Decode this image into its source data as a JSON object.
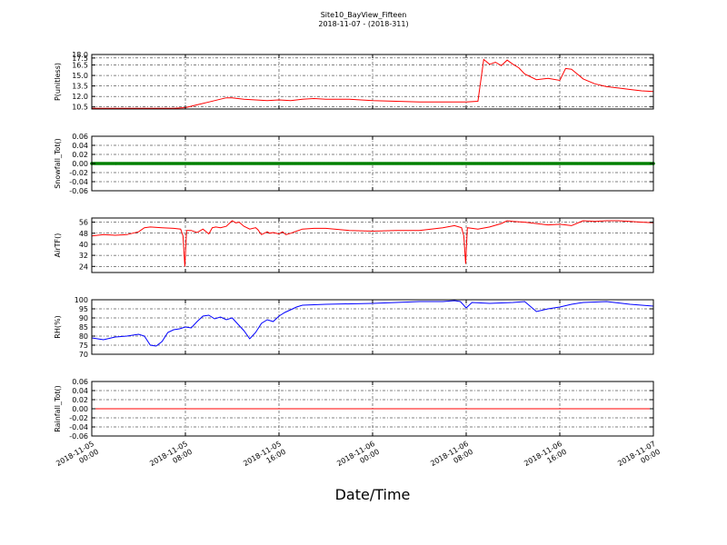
{
  "figure": {
    "title": "Site10_BayView_Fifteen",
    "subtitle": "2018-11-07 - (2018-311)",
    "xlabel": "Date/Time"
  },
  "chart_data": [
    {
      "type": "line",
      "ylabel": "P(unitless)",
      "color": "#ff0000",
      "ylim": [
        10.2,
        18.0
      ],
      "yticks": [
        "18.0",
        "17.5",
        "16.5",
        "15.0",
        "13.5",
        "12.0",
        "10.5"
      ],
      "ytick_values": [
        18.0,
        17.5,
        16.5,
        15.0,
        13.5,
        12.0,
        10.5
      ],
      "xlim": [
        0,
        48
      ],
      "x": [
        0,
        2,
        4,
        6,
        7,
        8,
        9,
        10,
        11,
        11.5,
        12,
        13,
        14,
        15,
        16,
        17,
        18,
        19,
        20,
        22,
        24,
        26,
        28,
        30,
        32,
        33,
        33.5,
        34,
        34.5,
        35,
        35.5,
        36,
        36.5,
        37,
        38,
        39,
        40,
        40.5,
        41,
        42,
        43,
        44,
        45,
        46,
        47,
        48
      ],
      "y": [
        10.3,
        10.3,
        10.3,
        10.3,
        10.3,
        10.4,
        10.8,
        11.2,
        11.6,
        11.8,
        11.8,
        11.6,
        11.5,
        11.4,
        11.5,
        11.4,
        11.6,
        11.7,
        11.6,
        11.6,
        11.4,
        11.3,
        11.2,
        11.2,
        11.2,
        11.3,
        17.3,
        16.6,
        16.9,
        16.4,
        17.2,
        16.6,
        16.1,
        15.2,
        14.4,
        14.6,
        14.3,
        16.0,
        15.9,
        14.5,
        13.8,
        13.4,
        13.2,
        13.0,
        12.8,
        12.7
      ]
    },
    {
      "type": "scatter",
      "ylabel": "Snowfall_Tot()",
      "color": "#008000",
      "ylim": [
        -0.06,
        0.06
      ],
      "yticks": [
        "0.06",
        "0.04",
        "0.02",
        "0.00",
        "-0.02",
        "-0.04",
        "-0.06"
      ],
      "ytick_values": [
        0.06,
        0.04,
        0.02,
        0.0,
        -0.02,
        -0.04,
        -0.06
      ],
      "xlim": [
        0,
        48
      ],
      "constant_value": 0.0
    },
    {
      "type": "line",
      "ylabel": "AirTF()",
      "color": "#ff0000",
      "ylim": [
        19.6,
        59.0
      ],
      "yticks": [
        "56",
        "48",
        "40",
        "32",
        "24"
      ],
      "ytick_values": [
        56,
        48,
        40,
        32,
        24
      ],
      "xlim": [
        0,
        48
      ],
      "x": [
        0,
        1,
        2,
        3,
        4,
        4.5,
        5,
        6,
        7,
        7.6,
        7.8,
        7.95,
        8.1,
        8.5,
        9,
        9.5,
        10,
        10.3,
        10.6,
        11,
        11.5,
        12,
        12.3,
        12.6,
        13,
        13.5,
        14,
        14.2,
        14.5,
        15,
        15.2,
        15.5,
        16,
        16.3,
        16.6,
        17,
        17.5,
        18,
        19,
        20,
        22,
        24,
        26,
        28,
        30,
        31,
        31.6,
        31.8,
        31.95,
        32.1,
        32.5,
        33,
        34,
        35,
        35.5,
        36,
        37,
        38,
        39,
        40,
        41,
        42,
        43,
        44,
        45,
        46,
        47,
        48
      ],
      "y": [
        46,
        47,
        46.5,
        47,
        49,
        52,
        52.5,
        52,
        51.5,
        51,
        46,
        24,
        50,
        50,
        48.5,
        51,
        47.5,
        52,
        52.5,
        52,
        53,
        57,
        55.5,
        56,
        53,
        51,
        52,
        50.5,
        47,
        49,
        48,
        48.5,
        47.5,
        49,
        47,
        48,
        49.5,
        51,
        51.5,
        51.5,
        50,
        49.5,
        50,
        50,
        52,
        53.5,
        52,
        46,
        26,
        52,
        51.5,
        51,
        52.5,
        55,
        57,
        56.5,
        56,
        55,
        54,
        54.5,
        53.5,
        57,
        56.5,
        57,
        57,
        56.5,
        56,
        55.5
      ]
    },
    {
      "type": "line",
      "ylabel": "RH(%)",
      "color": "#0000ff",
      "ylim": [
        70,
        100
      ],
      "yticks": [
        "100",
        "95",
        "90",
        "85",
        "80",
        "75",
        "70"
      ],
      "ytick_values": [
        100,
        95,
        90,
        85,
        80,
        75,
        70
      ],
      "xlim": [
        0,
        48
      ],
      "x": [
        0,
        1,
        2,
        3,
        4,
        4.5,
        5,
        5.5,
        6,
        6.5,
        7,
        7.5,
        8,
        8.5,
        9,
        9.5,
        10,
        10.5,
        11,
        11.5,
        12,
        12.5,
        13,
        13.5,
        14,
        14.5,
        15,
        15.5,
        16,
        16.5,
        17,
        17.5,
        18,
        20,
        24,
        28,
        30,
        31,
        31.5,
        32,
        32.5,
        34,
        36,
        37,
        38,
        39,
        40,
        41,
        42,
        44,
        46,
        48
      ],
      "y": [
        79,
        78,
        79.5,
        80,
        81,
        80,
        75,
        74.5,
        77,
        82,
        83.5,
        84,
        85,
        84.5,
        88,
        91,
        91.5,
        89.5,
        90.5,
        89,
        90,
        86.5,
        83,
        78.5,
        82,
        87,
        89,
        88,
        91,
        93,
        94.5,
        96,
        97,
        97.5,
        98,
        99,
        99,
        99.5,
        99,
        95.5,
        98.5,
        98,
        98.5,
        99,
        93.5,
        95,
        96,
        97.5,
        98.5,
        99,
        97.5,
        96.5
      ]
    },
    {
      "type": "line",
      "ylabel": "Rainfall_Tot()",
      "color": "#ff0000",
      "ylim": [
        -0.06,
        0.06
      ],
      "yticks": [
        "0.06",
        "0.04",
        "0.02",
        "0.00",
        "-0.02",
        "-0.04",
        "-0.06"
      ],
      "ytick_values": [
        0.06,
        0.04,
        0.02,
        0.0,
        -0.02,
        -0.04,
        -0.06
      ],
      "xlim": [
        0,
        48
      ],
      "x": [
        0,
        48
      ],
      "y": [
        0.0,
        0.0
      ]
    }
  ],
  "x_axis": {
    "ticks": [
      {
        "x": 0,
        "line1": "2018-11-05",
        "line2": "00:00"
      },
      {
        "x": 8,
        "line1": "2018-11-05",
        "line2": "08:00"
      },
      {
        "x": 16,
        "line1": "2018-11-05",
        "line2": "16:00"
      },
      {
        "x": 24,
        "line1": "2018-11-06",
        "line2": "00:00"
      },
      {
        "x": 32,
        "line1": "2018-11-06",
        "line2": "08:00"
      },
      {
        "x": 40,
        "line1": "2018-11-06",
        "line2": "16:00"
      },
      {
        "x": 48,
        "line1": "2018-11-07",
        "line2": "00:00"
      }
    ]
  }
}
